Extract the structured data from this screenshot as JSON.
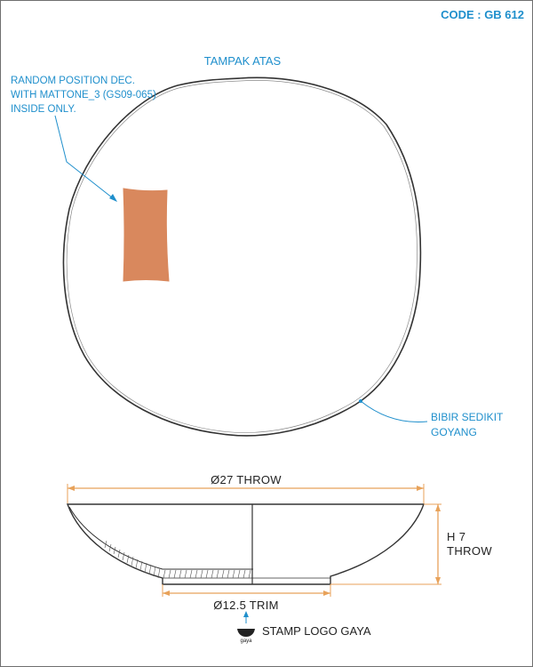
{
  "code": "CODE : GB 612",
  "top_view": {
    "title": "TAMPAK ATAS",
    "note_lines": [
      "RANDOM POSITION DEC.",
      "WITH MATTONE_3 (GS09-065)",
      "INSIDE ONLY."
    ],
    "rim_note_lines": [
      "BIBIR SEDIKIT",
      "GOYANG"
    ]
  },
  "side_view": {
    "diameter": "Ø27 THROW",
    "height_lines": [
      "H 7",
      "THROW"
    ],
    "trim": "Ø12.5 TRIM"
  },
  "stamp": {
    "label": "STAMP LOGO GAYA",
    "logo_text": "gaya"
  },
  "colors": {
    "annotation": "#1f8fcc",
    "dimension": "#e8a25a",
    "decoration": "#d9885d",
    "outline": "#333333"
  }
}
